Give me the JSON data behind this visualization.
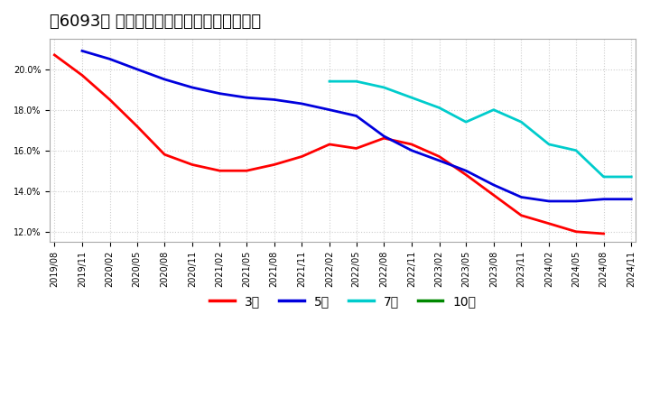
{
  "title": "［6093］ 経常利益マージンの平均値の推移",
  "background_color": "#ffffff",
  "plot_bg_color": "#ffffff",
  "grid_color": "#cccccc",
  "xlabel": "",
  "ylabel": "",
  "ylim": [
    0.115,
    0.215
  ],
  "yticks": [
    0.12,
    0.14,
    0.16,
    0.18,
    0.2
  ],
  "series": {
    "3年": {
      "color": "#ff0000",
      "x": [
        "2019/08",
        "2019/11",
        "2020/02",
        "2020/05",
        "2020/08",
        "2020/11",
        "2021/02",
        "2021/05",
        "2021/08",
        "2021/11",
        "2022/02",
        "2022/05",
        "2022/08",
        "2022/11",
        "2023/02",
        "2023/05",
        "2023/08",
        "2023/11",
        "2024/02",
        "2024/05",
        "2024/08"
      ],
      "y": [
        0.207,
        0.197,
        0.185,
        0.172,
        0.158,
        0.153,
        0.15,
        0.15,
        0.153,
        0.157,
        0.163,
        0.161,
        0.166,
        0.163,
        0.157,
        0.148,
        0.138,
        0.128,
        0.124,
        0.12,
        0.119
      ]
    },
    "5年": {
      "color": "#0000dd",
      "x": [
        "2019/11",
        "2020/02",
        "2020/05",
        "2020/08",
        "2020/11",
        "2021/02",
        "2021/05",
        "2021/08",
        "2021/11",
        "2022/02",
        "2022/05",
        "2022/08",
        "2022/11",
        "2023/02",
        "2023/05",
        "2023/08",
        "2023/11",
        "2024/02",
        "2024/05",
        "2024/08",
        "2024/11"
      ],
      "y": [
        0.209,
        0.205,
        0.2,
        0.195,
        0.191,
        0.188,
        0.186,
        0.185,
        0.183,
        0.18,
        0.177,
        0.167,
        0.16,
        0.155,
        0.15,
        0.143,
        0.137,
        0.135,
        0.135,
        0.136,
        0.136
      ]
    },
    "7年": {
      "color": "#00cccc",
      "x": [
        "2022/02",
        "2022/05",
        "2022/08",
        "2022/11",
        "2023/02",
        "2023/05",
        "2023/08",
        "2023/11",
        "2024/02",
        "2024/05",
        "2024/08",
        "2024/11"
      ],
      "y": [
        0.194,
        0.194,
        0.191,
        0.186,
        0.181,
        0.174,
        0.18,
        0.174,
        0.163,
        0.16,
        0.147,
        0.147
      ]
    },
    "10年": {
      "color": "#008800",
      "x": [],
      "y": []
    }
  },
  "xtick_labels": [
    "2019/08",
    "2019/11",
    "2020/02",
    "2020/05",
    "2020/08",
    "2020/11",
    "2021/02",
    "2021/05",
    "2021/08",
    "2021/11",
    "2022/02",
    "2022/05",
    "2022/08",
    "2022/11",
    "2023/02",
    "2023/05",
    "2023/08",
    "2023/11",
    "2024/02",
    "2024/05",
    "2024/08",
    "2024/11"
  ],
  "legend_labels": [
    "3年",
    "5年",
    "7年",
    "10年"
  ],
  "legend_colors": [
    "#ff0000",
    "#0000dd",
    "#00cccc",
    "#008800"
  ],
  "title_fontsize": 13,
  "tick_fontsize": 7,
  "legend_fontsize": 10
}
